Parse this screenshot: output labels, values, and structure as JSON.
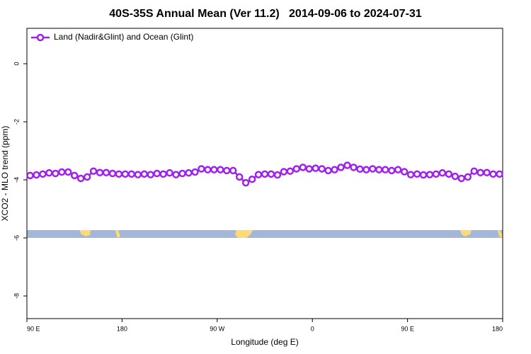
{
  "chart_data": {
    "type": "line",
    "title": "40S-35S Annual Mean (Ver 11.2)   2014-09-06 to 2024-07-31",
    "x_label": "Longitude (deg E)",
    "y_label": "XCO2 - MLO trend (ppm)",
    "xlim": [
      90,
      540
    ],
    "xticks": [
      {
        "value": 90,
        "label": "90 E"
      },
      180,
      {
        "value": 270,
        "label": "90 W"
      },
      {
        "value": 360,
        "label": "0"
      },
      {
        "value": 450,
        "label": "90 E"
      },
      {
        "value": 540,
        "label": "180"
      }
    ],
    "ylim": [
      -8.78,
      1.22
    ],
    "yticks": [
      0,
      -2,
      -4,
      -6,
      -8
    ],
    "legend": "top-left",
    "x": [
      93,
      99,
      105,
      111,
      117,
      123,
      129,
      135,
      141,
      147,
      153,
      159,
      165,
      171,
      177,
      183,
      189,
      195,
      201,
      207,
      213,
      219,
      225,
      231,
      237,
      243,
      249,
      255,
      261,
      267,
      273,
      279,
      285,
      291,
      297,
      303,
      309,
      315,
      321,
      327,
      333,
      339,
      345,
      351,
      357,
      363,
      369,
      375,
      381,
      387,
      393,
      399,
      405,
      411,
      417,
      423,
      429,
      435,
      441,
      447,
      453,
      459,
      465,
      471,
      477,
      483,
      489,
      495,
      501,
      507,
      513,
      519,
      525,
      531,
      537
    ],
    "series": [
      {
        "name": "Land (Nadir&Glint) and Ocean (Glint)",
        "color": "#a020f0",
        "values": [
          -3.85,
          -3.83,
          -3.8,
          -3.76,
          -3.78,
          -3.73,
          -3.73,
          -3.85,
          -3.95,
          -3.9,
          -3.7,
          -3.75,
          -3.75,
          -3.78,
          -3.8,
          -3.8,
          -3.8,
          -3.82,
          -3.8,
          -3.82,
          -3.78,
          -3.8,
          -3.76,
          -3.82,
          -3.78,
          -3.76,
          -3.73,
          -3.62,
          -3.65,
          -3.65,
          -3.65,
          -3.68,
          -3.68,
          -3.9,
          -4.1,
          -3.98,
          -3.82,
          -3.8,
          -3.8,
          -3.83,
          -3.72,
          -3.7,
          -3.62,
          -3.57,
          -3.62,
          -3.6,
          -3.62,
          -3.68,
          -3.65,
          -3.57,
          -3.5,
          -3.57,
          -3.63,
          -3.65,
          -3.62,
          -3.65,
          -3.65,
          -3.68,
          -3.65,
          -3.72,
          -3.82,
          -3.8,
          -3.83,
          -3.82,
          -3.8,
          -3.76,
          -3.8,
          -3.88,
          -3.95,
          -3.9,
          -3.7,
          -3.75,
          -3.75,
          -3.8,
          -3.8
        ]
      }
    ]
  }
}
